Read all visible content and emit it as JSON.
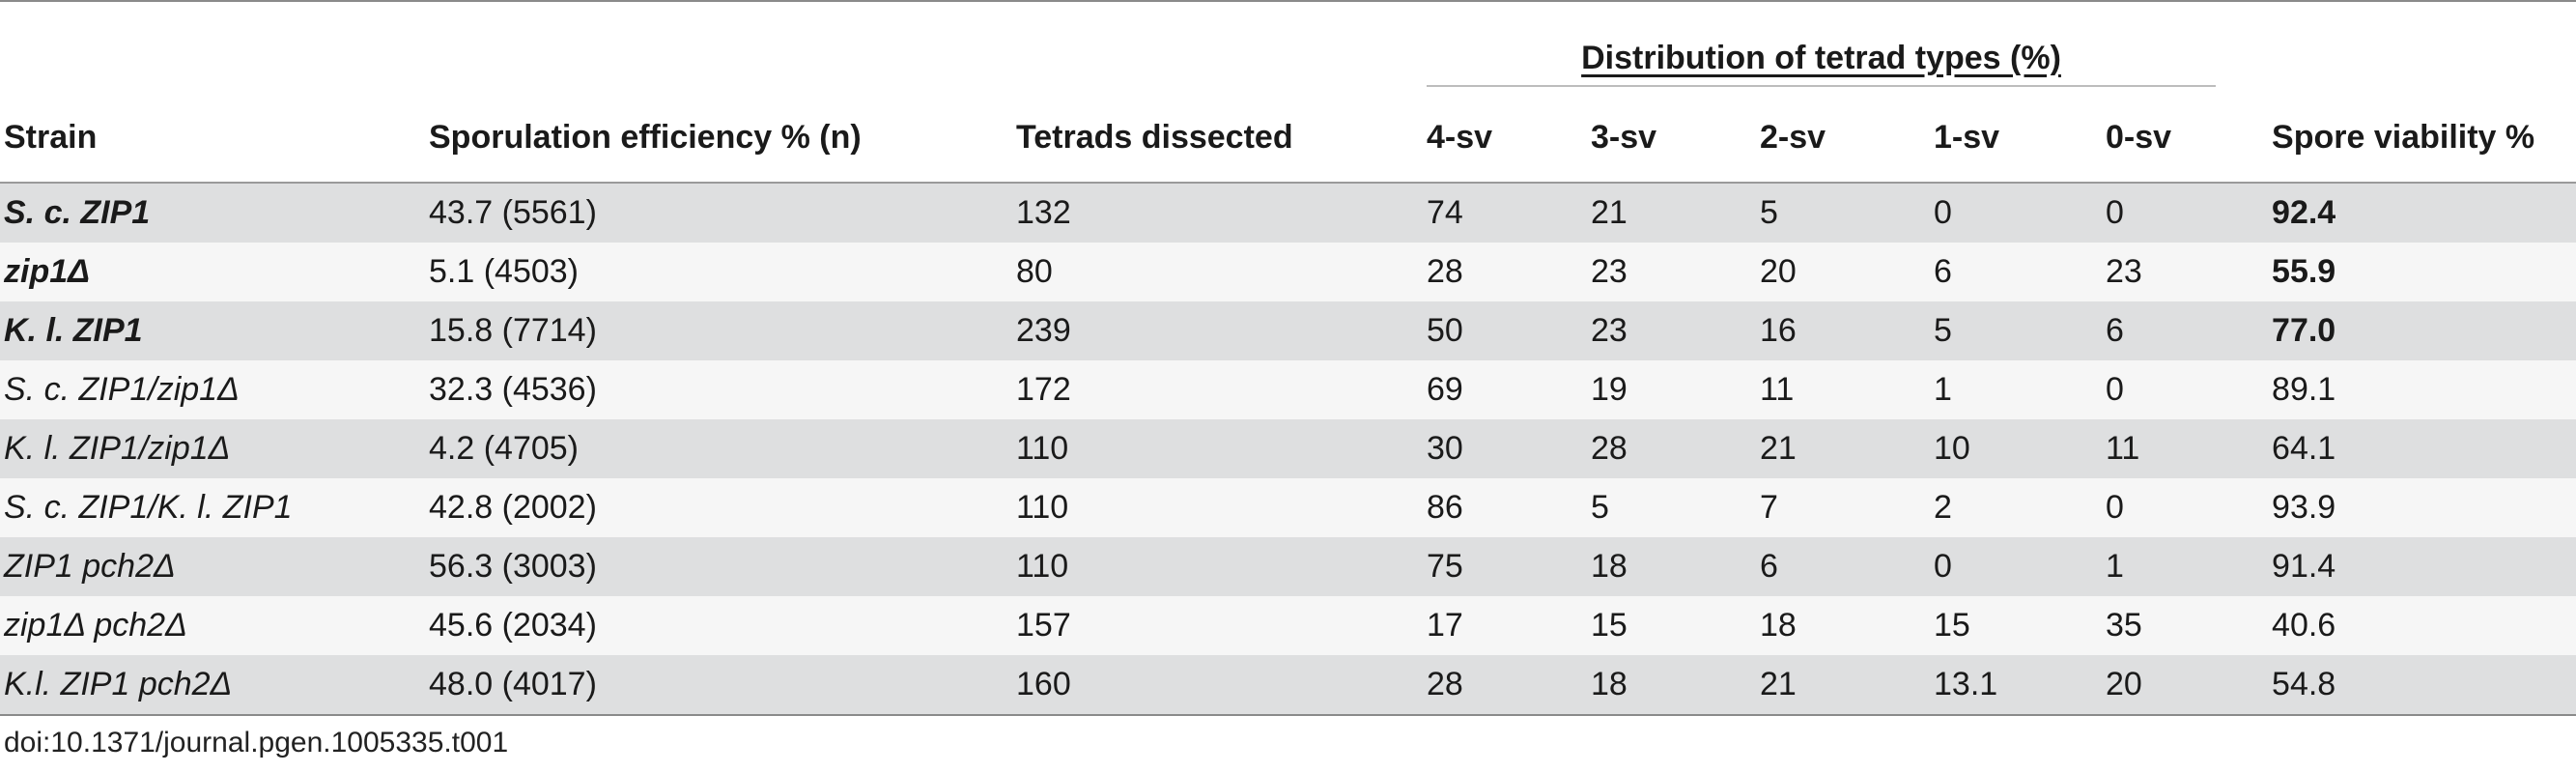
{
  "table": {
    "group_header": "Distribution of tetrad types (%)",
    "columns": [
      "Strain",
      "Sporulation efficiency % (n)",
      "Tetrads dissected",
      "4-sv",
      "3-sv",
      "2-sv",
      "1-sv",
      "0-sv",
      "Spore viability %"
    ],
    "rows": [
      {
        "strain": "S. c. ZIP1",
        "spo": "43.7 (5561)",
        "tetrads": "132",
        "sv4": "74",
        "sv3": "21",
        "sv2": "5",
        "sv1": "0",
        "sv0": "0",
        "viability": "92.4"
      },
      {
        "strain": "zip1Δ",
        "spo": "5.1 (4503)",
        "tetrads": "80",
        "sv4": "28",
        "sv3": "23",
        "sv2": "20",
        "sv1": "6",
        "sv0": "23",
        "viability": "55.9"
      },
      {
        "strain": "K. l. ZIP1",
        "spo": "15.8 (7714)",
        "tetrads": "239",
        "sv4": "50",
        "sv3": "23",
        "sv2": "16",
        "sv1": "5",
        "sv0": "6",
        "viability": "77.0"
      },
      {
        "strain": "S. c. ZIP1/zip1Δ",
        "spo": "32.3 (4536)",
        "tetrads": "172",
        "sv4": "69",
        "sv3": "19",
        "sv2": "11",
        "sv1": "1",
        "sv0": "0",
        "viability": "89.1"
      },
      {
        "strain": "K. l. ZIP1/zip1Δ",
        "spo": "4.2 (4705)",
        "tetrads": "110",
        "sv4": "30",
        "sv3": "28",
        "sv2": "21",
        "sv1": "10",
        "sv0": "11",
        "viability": "64.1"
      },
      {
        "strain": "S. c. ZIP1/K. l. ZIP1",
        "spo": "42.8 (2002)",
        "tetrads": "110",
        "sv4": "86",
        "sv3": "5",
        "sv2": "7",
        "sv1": "2",
        "sv0": "0",
        "viability": "93.9"
      },
      {
        "strain": "ZIP1 pch2Δ",
        "spo": "56.3 (3003)",
        "tetrads": "110",
        "sv4": "75",
        "sv3": "18",
        "sv2": "6",
        "sv1": "0",
        "sv0": "1",
        "viability": "91.4"
      },
      {
        "strain": "zip1Δ pch2Δ",
        "spo": "45.6 (2034)",
        "tetrads": "157",
        "sv4": "17",
        "sv3": "15",
        "sv2": "18",
        "sv1": "15",
        "sv0": "35",
        "viability": "40.6"
      },
      {
        "strain": "K.l. ZIP1 pch2Δ",
        "spo": "48.0 (4017)",
        "tetrads": "160",
        "sv4": "28",
        "sv3": "18",
        "sv2": "21",
        "sv1": "13.1",
        "sv0": "20",
        "viability": "54.8"
      }
    ]
  },
  "footer": {
    "doi": "doi:10.1371/journal.pgen.1005335.t001"
  }
}
